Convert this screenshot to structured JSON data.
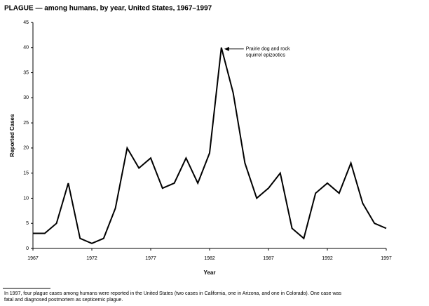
{
  "chart_data": {
    "type": "line",
    "title": "PLAGUE — among humans, by year, United States, 1967–1997",
    "xlabel": "Year",
    "ylabel": "Reported Cases",
    "x": [
      1967,
      1968,
      1969,
      1970,
      1971,
      1972,
      1973,
      1974,
      1975,
      1976,
      1977,
      1978,
      1979,
      1980,
      1981,
      1982,
      1983,
      1984,
      1985,
      1986,
      1987,
      1988,
      1989,
      1990,
      1991,
      1992,
      1993,
      1994,
      1995,
      1996,
      1997
    ],
    "values": [
      3,
      3,
      5,
      13,
      2,
      1,
      2,
      8,
      20,
      16,
      18,
      12,
      13,
      18,
      13,
      19,
      40,
      31,
      17,
      10,
      12,
      15,
      4,
      2,
      11,
      13,
      11,
      17,
      9,
      5,
      4
    ],
    "color": "#000000",
    "xlim": [
      1967,
      1997
    ],
    "xticks": [
      1967,
      1972,
      1977,
      1982,
      1987,
      1992,
      1997
    ],
    "ylim": [
      0,
      45
    ],
    "yticks": [
      0,
      5,
      10,
      15,
      20,
      25,
      30,
      35,
      40,
      45
    ],
    "annotation": [
      "Prairie dog and rock",
      "squirrel epizootics"
    ],
    "footnote": [
      "In 1997, four plague cases among humans were reported in the United States (two cases in California, one in Arizona, and one in Colorado).  One case was",
      "fatal and diagnosed postmortem as septicemic plague."
    ]
  }
}
